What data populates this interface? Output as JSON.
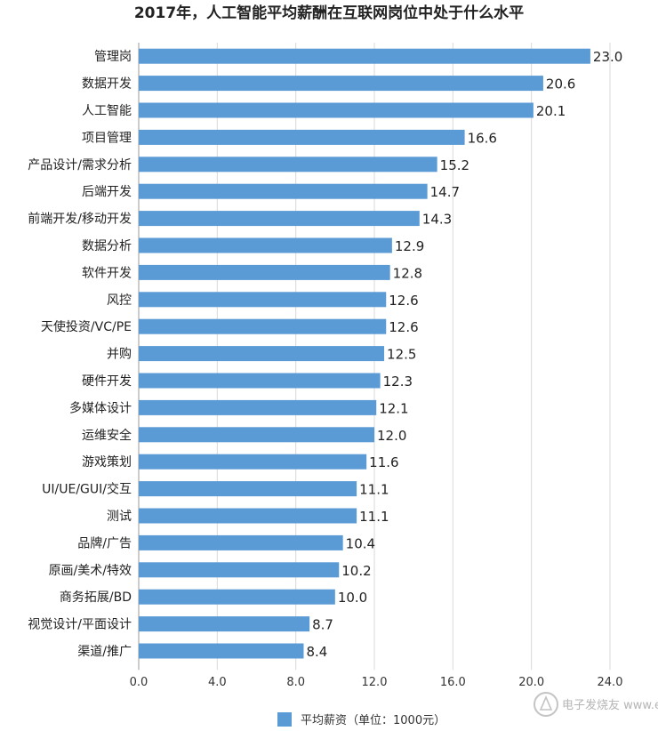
{
  "chart_data": {
    "type": "bar",
    "orientation": "horizontal",
    "title": "2017年，人工智能平均薪酬在互联网岗位中处于什么水平",
    "categories": [
      "管理岗",
      "数据开发",
      "人工智能",
      "项目管理",
      "产品设计/需求分析",
      "后端开发",
      "前端开发/移动开发",
      "数据分析",
      "软件开发",
      "风控",
      "天使投资/VC/PE",
      "并购",
      "硬件开发",
      "多媒体设计",
      "运维安全",
      "游戏策划",
      "UI/UE/GUI/交互",
      "测试",
      "品牌/广告",
      "原画/美术/特效",
      "商务拓展/BD",
      "视觉设计/平面设计",
      "渠道/推广"
    ],
    "series": [
      {
        "name": "平均薪资（单位：1000元）",
        "values": [
          23.0,
          20.6,
          20.1,
          16.6,
          15.2,
          14.7,
          14.3,
          12.9,
          12.8,
          12.6,
          12.6,
          12.5,
          12.3,
          12.1,
          12.0,
          11.6,
          11.1,
          11.1,
          10.4,
          10.2,
          10.0,
          8.7,
          8.4
        ],
        "labels": [
          "23.0",
          "20.6",
          "20.1",
          "16.6",
          "15.2",
          "14.7",
          "14.3",
          "12.9",
          "12.8",
          "12.6",
          "12.6",
          "12.5",
          "12.3",
          "12.1",
          "12.0",
          "11.6",
          "11.1",
          "11.1",
          "10.4",
          "10.2",
          "10.0",
          "8.7",
          "8.4"
        ]
      }
    ],
    "xlim": [
      0,
      24
    ],
    "ticks": [
      0,
      4,
      8,
      12,
      16,
      20,
      24
    ],
    "tick_labels": [
      "0.0",
      "4.0",
      "8.0",
      "12.0",
      "16.0",
      "20.0",
      "24.0"
    ],
    "legend": "bottom",
    "grid": true,
    "bar_color": "#5b9bd5"
  },
  "watermark": "电子发烧友 www.elecfans.com"
}
